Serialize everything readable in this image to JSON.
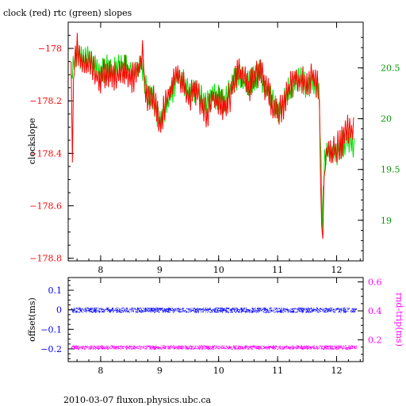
{
  "title": "clock (red) rtc (green) slopes",
  "footer": "2010-03-07 fluxon.physics.ubc.ca",
  "colors": {
    "clock": "#ff0000",
    "rtc": "#00e000",
    "offset": "#0000ff",
    "rndtrip": "#ff00ff",
    "axis": "#000000"
  },
  "chart_data": [
    {
      "type": "line",
      "title": "clock (red) rtc (green) slopes",
      "ylabel": "clockslope",
      "xlim": [
        7.45,
        12.45
      ],
      "ylim": [
        -178.81,
        -177.9
      ],
      "y2lim": [
        18.6,
        20.95
      ],
      "x_ticks": [
        "8",
        "9",
        "10",
        "11",
        "12"
      ],
      "y_ticks": [
        "-178",
        "-178.2",
        "-178.4",
        "-178.6",
        "-178.8"
      ],
      "y2_ticks": [
        "20.5",
        "20",
        "19.5",
        "19"
      ],
      "series": [
        {
          "name": "clock",
          "x": [
            7.5,
            7.52,
            7.55,
            7.6,
            7.7,
            7.8,
            7.9,
            8.0,
            8.1,
            8.2,
            8.3,
            8.4,
            8.5,
            8.6,
            8.7,
            8.72,
            8.75,
            8.8,
            8.9,
            9.0,
            9.1,
            9.2,
            9.3,
            9.4,
            9.5,
            9.6,
            9.7,
            9.8,
            9.9,
            10.0,
            10.1,
            10.2,
            10.3,
            10.4,
            10.5,
            10.6,
            10.7,
            10.8,
            10.9,
            11.0,
            11.1,
            11.2,
            11.3,
            11.4,
            11.5,
            11.6,
            11.7,
            11.73,
            11.75,
            11.77,
            11.8,
            11.85,
            11.9,
            12.0,
            12.1,
            12.2,
            12.3
          ],
          "y": [
            -178.1,
            -178.4,
            -178.05,
            -178.0,
            -178.08,
            -178.05,
            -178.1,
            -178.12,
            -178.08,
            -178.12,
            -178.1,
            -178.08,
            -178.12,
            -178.1,
            -178.05,
            -177.98,
            -178.15,
            -178.2,
            -178.2,
            -178.28,
            -178.22,
            -178.15,
            -178.1,
            -178.12,
            -178.2,
            -178.15,
            -178.2,
            -178.25,
            -178.18,
            -178.2,
            -178.22,
            -178.18,
            -178.1,
            -178.1,
            -178.15,
            -178.12,
            -178.08,
            -178.15,
            -178.2,
            -178.25,
            -178.22,
            -178.15,
            -178.12,
            -178.12,
            -178.15,
            -178.1,
            -178.15,
            -178.5,
            -178.78,
            -178.65,
            -178.45,
            -178.38,
            -178.4,
            -178.38,
            -178.35,
            -178.3,
            -178.32
          ]
        },
        {
          "name": "rtc",
          "x": [
            7.5,
            7.55,
            7.6,
            7.7,
            7.8,
            7.9,
            8.0,
            8.1,
            8.2,
            8.3,
            8.4,
            8.5,
            8.6,
            8.7,
            8.8,
            8.9,
            9.0,
            9.1,
            9.2,
            9.3,
            9.4,
            9.5,
            9.6,
            9.7,
            9.8,
            9.9,
            10.0,
            10.1,
            10.2,
            10.3,
            10.4,
            10.5,
            10.6,
            10.7,
            10.8,
            10.9,
            11.0,
            11.1,
            11.2,
            11.3,
            11.4,
            11.5,
            11.6,
            11.7,
            11.73,
            11.75,
            11.77,
            11.8,
            11.85,
            11.9,
            12.0,
            12.1,
            12.2,
            12.3
          ],
          "y": [
            20.4,
            20.55,
            20.65,
            20.55,
            20.6,
            20.5,
            20.45,
            20.5,
            20.45,
            20.5,
            20.52,
            20.45,
            20.5,
            20.55,
            20.2,
            20.2,
            19.95,
            20.1,
            20.25,
            20.4,
            20.35,
            20.25,
            20.3,
            20.2,
            20.15,
            20.25,
            20.2,
            20.15,
            20.3,
            20.4,
            20.4,
            20.35,
            20.4,
            20.45,
            20.3,
            20.2,
            20.05,
            20.15,
            20.3,
            20.35,
            20.4,
            20.3,
            20.35,
            20.25,
            19.8,
            18.95,
            19.2,
            19.65,
            19.7,
            19.7,
            19.65,
            19.75,
            19.8,
            19.7
          ]
        }
      ]
    },
    {
      "type": "scatter",
      "ylabel": "offset(ms)",
      "y2label": "rnd-trip(ms)",
      "xlim": [
        7.45,
        12.45
      ],
      "ylim": [
        -0.265,
        0.165
      ],
      "y2lim": [
        0.05,
        0.63
      ],
      "x_ticks": [
        "8",
        "9",
        "10",
        "11",
        "12"
      ],
      "y_ticks": [
        "0.1",
        "0",
        "-0.1",
        "-0.2"
      ],
      "y2_ticks": [
        "0.6",
        "0.4",
        "0.2"
      ],
      "series": [
        {
          "name": "offset",
          "band_center": 0.0,
          "band_spread": 0.012
        },
        {
          "name": "rnd-trip",
          "band_center": 0.15,
          "band_spread": 0.012
        }
      ]
    }
  ]
}
